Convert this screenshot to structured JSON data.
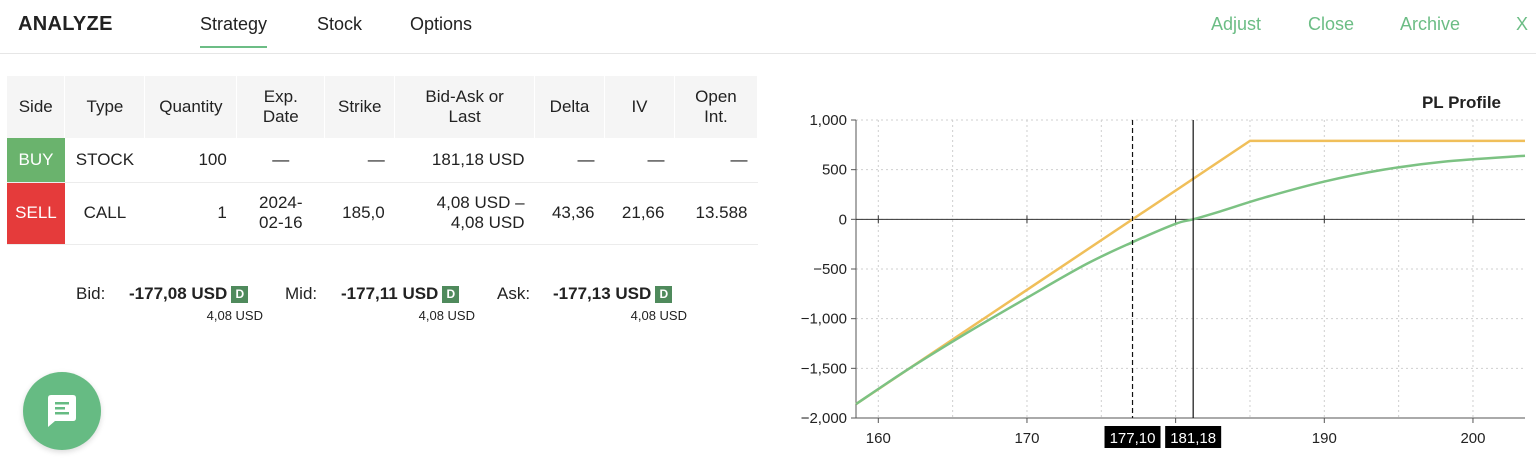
{
  "header": {
    "title": "ANALYZE",
    "tabs": [
      {
        "label": "Strategy",
        "active": true
      },
      {
        "label": "Stock",
        "active": false
      },
      {
        "label": "Options",
        "active": false
      }
    ],
    "actions": {
      "adjust": "Adjust",
      "close": "Close",
      "archive": "Archive",
      "dismiss": "X"
    }
  },
  "table": {
    "headers": {
      "side": "Side",
      "type": "Type",
      "quantity": "Quantity",
      "exp_line1": "Exp.",
      "exp_line2": "Date",
      "strike": "Strike",
      "bidask_line1": "Bid-Ask or",
      "bidask_line2": "Last",
      "delta": "Delta",
      "iv": "IV",
      "oi_line1": "Open",
      "oi_line2": "Int."
    },
    "rows": [
      {
        "side": "BUY",
        "type": "STOCK",
        "quantity": "100",
        "exp_line1": "—",
        "exp_line2": "",
        "strike": "—",
        "bidask_line1": "181,18 USD",
        "bidask_line2": "",
        "delta": "—",
        "iv": "—",
        "oi": "—"
      },
      {
        "side": "SELL",
        "type": "CALL",
        "quantity": "1",
        "exp_line1": "2024-",
        "exp_line2": "02-16",
        "strike": "185,0",
        "bidask_line1": "4,08 USD –",
        "bidask_line2": "4,08 USD",
        "delta": "43,36",
        "iv": "21,66",
        "oi": "13.588"
      }
    ]
  },
  "quotes": {
    "bid": {
      "label": "Bid:",
      "value": "-177,08 USD",
      "badge": "D",
      "sub": "4,08 USD"
    },
    "mid": {
      "label": "Mid:",
      "value": "-177,11 USD",
      "badge": "D",
      "sub": "4,08 USD"
    },
    "ask": {
      "label": "Ask:",
      "value": "-177,13 USD",
      "badge": "D",
      "sub": "4,08 USD"
    }
  },
  "colors": {
    "accent": "#6cbd85",
    "buy": "#6ab36d",
    "sell": "#e53b3b",
    "expiry_line": "#f0bf5a",
    "today_line": "#7cc283"
  },
  "chat_button": {
    "icon": "chat-icon"
  },
  "chart_data": {
    "type": "line",
    "title": "PL Profile",
    "xlabel": "",
    "ylabel": "",
    "xlim": [
      158.5,
      203.5
    ],
    "ylim": [
      -2000,
      1000
    ],
    "x_ticks": [
      160,
      170,
      180,
      190,
      200
    ],
    "x_tick_labels": [
      "160",
      "170",
      "",
      "190",
      "200"
    ],
    "y_ticks": [
      1000,
      500,
      0,
      -500,
      -1000,
      -1500,
      -2000
    ],
    "y_tick_labels": [
      "1,000",
      "500",
      "0",
      "−500",
      "−1,000",
      "−1,500",
      "−2,000"
    ],
    "grid": true,
    "series": [
      {
        "x": [
          158.5,
          185,
          203.5
        ],
        "y": [
          -1860,
          790,
          790
        ]
      },
      {
        "x": [
          158.5,
          162,
          166,
          170,
          174,
          177.1,
          180,
          181.18,
          183,
          186,
          190,
          194,
          198,
          203.5
        ],
        "y": [
          -1860,
          -1510,
          -1140,
          -790,
          -450,
          -230,
          -45,
          0,
          80,
          220,
          380,
          500,
          580,
          640
        ]
      }
    ],
    "markers": [
      {
        "x": 177.1,
        "label": "177,10",
        "style": "dashed"
      },
      {
        "x": 181.18,
        "label": "181,18",
        "style": "solid"
      }
    ]
  }
}
